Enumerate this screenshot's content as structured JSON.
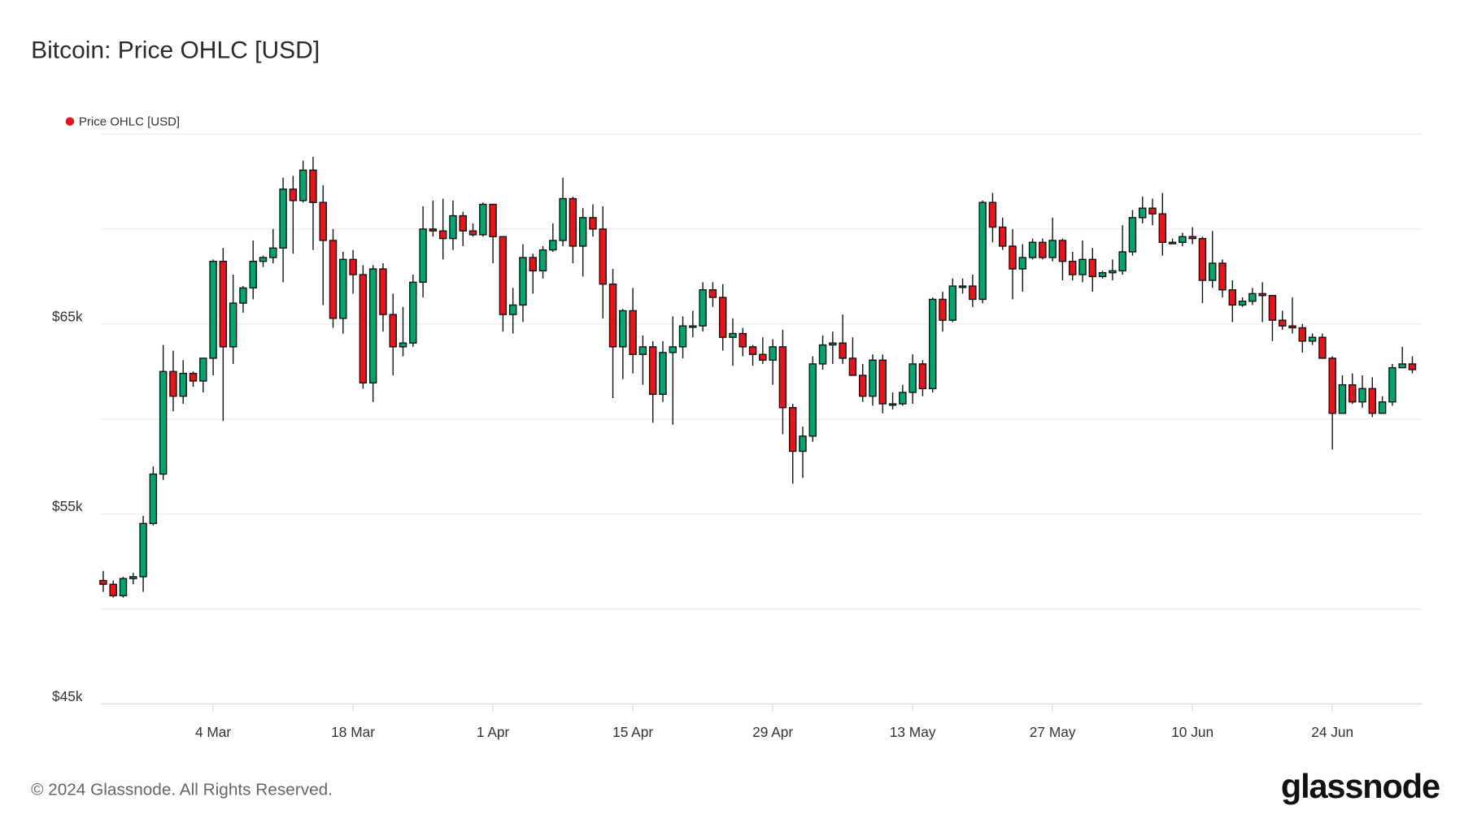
{
  "title": "Bitcoin: Price OHLC [USD]",
  "footer": "© 2024 Glassnode. All Rights Reserved.",
  "logo": "glassnode",
  "chart_data": {
    "type": "candlestick",
    "title": "Bitcoin: Price OHLC [USD]",
    "legend": [
      {
        "name": "Price OHLC [USD]",
        "color": "#e8141a"
      }
    ],
    "legend_placement": "top-left",
    "colors": {
      "up": "#00a66e",
      "down": "#e8141a",
      "outline": "#111111",
      "grid": "#ececec"
    },
    "grid": true,
    "ylim": [
      45000,
      75000
    ],
    "y_gridlines": [
      45000,
      50000,
      55000,
      60000,
      65000,
      70000,
      75000
    ],
    "y_ticks": [
      {
        "label": "$45k",
        "value": 45000
      },
      {
        "label": "$55k",
        "value": 55000
      },
      {
        "label": "$65k",
        "value": 65000
      }
    ],
    "x_ticks": [
      {
        "label": "4 Mar",
        "date": "2024-03-04"
      },
      {
        "label": "18 Mar",
        "date": "2024-03-18"
      },
      {
        "label": "1 Apr",
        "date": "2024-04-01"
      },
      {
        "label": "15 Apr",
        "date": "2024-04-15"
      },
      {
        "label": "29 Apr",
        "date": "2024-04-29"
      },
      {
        "label": "13 May",
        "date": "2024-05-13"
      },
      {
        "label": "27 May",
        "date": "2024-05-27"
      },
      {
        "label": "10 Jun",
        "date": "2024-06-10"
      },
      {
        "label": "24 Jun",
        "date": "2024-06-24"
      }
    ],
    "columns": [
      "date",
      "open",
      "high",
      "low",
      "close"
    ],
    "candles": [
      [
        "2024-02-22",
        51500,
        52000,
        50900,
        51300
      ],
      [
        "2024-02-23",
        51300,
        51500,
        50600,
        50700
      ],
      [
        "2024-02-24",
        50700,
        51700,
        50600,
        51600
      ],
      [
        "2024-02-25",
        51600,
        51900,
        51300,
        51700
      ],
      [
        "2024-02-26",
        51700,
        54900,
        50900,
        54500
      ],
      [
        "2024-02-27",
        54500,
        57500,
        54400,
        57100
      ],
      [
        "2024-02-28",
        57100,
        63900,
        56800,
        62500
      ],
      [
        "2024-02-29",
        62500,
        63600,
        60400,
        61200
      ],
      [
        "2024-03-01",
        61200,
        63100,
        60800,
        62400
      ],
      [
        "2024-03-02",
        62400,
        62500,
        61700,
        62000
      ],
      [
        "2024-03-03",
        62000,
        63200,
        61400,
        63200
      ],
      [
        "2024-03-04",
        63200,
        68400,
        62300,
        68300
      ],
      [
        "2024-03-05",
        68300,
        69000,
        59900,
        63800
      ],
      [
        "2024-03-06",
        63800,
        67600,
        62900,
        66100
      ],
      [
        "2024-03-07",
        66100,
        67000,
        65600,
        66900
      ],
      [
        "2024-03-08",
        66900,
        69400,
        66300,
        68300
      ],
      [
        "2024-03-09",
        68300,
        68600,
        68000,
        68500
      ],
      [
        "2024-03-10",
        68500,
        70000,
        68200,
        69000
      ],
      [
        "2024-03-11",
        69000,
        72700,
        67200,
        72100
      ],
      [
        "2024-03-12",
        72100,
        72800,
        68700,
        71500
      ],
      [
        "2024-03-13",
        71500,
        73600,
        71400,
        73100
      ],
      [
        "2024-03-14",
        73100,
        73800,
        68900,
        71400
      ],
      [
        "2024-03-15",
        71400,
        72300,
        66000,
        69400
      ],
      [
        "2024-03-16",
        69400,
        70000,
        64800,
        65300
      ],
      [
        "2024-03-17",
        65300,
        68800,
        64500,
        68400
      ],
      [
        "2024-03-18",
        68400,
        68900,
        66600,
        67600
      ],
      [
        "2024-03-19",
        67600,
        68100,
        61600,
        61900
      ],
      [
        "2024-03-20",
        61900,
        68100,
        60900,
        67900
      ],
      [
        "2024-03-21",
        67900,
        68200,
        64600,
        65500
      ],
      [
        "2024-03-22",
        65500,
        66600,
        62300,
        63800
      ],
      [
        "2024-03-23",
        63800,
        65900,
        63300,
        64000
      ],
      [
        "2024-03-24",
        64000,
        67600,
        63800,
        67200
      ],
      [
        "2024-03-25",
        67200,
        71200,
        66400,
        70000
      ],
      [
        "2024-03-26",
        70000,
        71500,
        69600,
        69900
      ],
      [
        "2024-03-27",
        69900,
        71600,
        68400,
        69500
      ],
      [
        "2024-03-28",
        69500,
        71500,
        68900,
        70700
      ],
      [
        "2024-03-29",
        70700,
        70900,
        69100,
        69900
      ],
      [
        "2024-03-30",
        69900,
        70300,
        69600,
        69700
      ],
      [
        "2024-03-31",
        69700,
        71400,
        69600,
        71300
      ],
      [
        "2024-04-01",
        71300,
        71300,
        68200,
        69600
      ],
      [
        "2024-04-02",
        69600,
        69600,
        64600,
        65500
      ],
      [
        "2024-04-03",
        65500,
        66900,
        64500,
        66000
      ],
      [
        "2024-04-04",
        66000,
        69200,
        65100,
        68500
      ],
      [
        "2024-04-05",
        68500,
        68700,
        66600,
        67800
      ],
      [
        "2024-04-06",
        67800,
        69100,
        67400,
        68900
      ],
      [
        "2024-04-07",
        68900,
        70300,
        68800,
        69400
      ],
      [
        "2024-04-08",
        69400,
        72700,
        69100,
        71600
      ],
      [
        "2024-04-09",
        71600,
        71700,
        68200,
        69100
      ],
      [
        "2024-04-10",
        69100,
        71100,
        67500,
        70600
      ],
      [
        "2024-04-11",
        70600,
        71300,
        69600,
        70000
      ],
      [
        "2024-04-12",
        70000,
        71200,
        65300,
        67100
      ],
      [
        "2024-04-13",
        67100,
        67900,
        61100,
        63800
      ],
      [
        "2024-04-14",
        63800,
        65800,
        62100,
        65700
      ],
      [
        "2024-04-15",
        65700,
        66900,
        62400,
        63400
      ],
      [
        "2024-04-16",
        63400,
        64400,
        61800,
        63800
      ],
      [
        "2024-04-17",
        63800,
        64100,
        59800,
        61300
      ],
      [
        "2024-04-18",
        61300,
        64100,
        60900,
        63500
      ],
      [
        "2024-04-19",
        63500,
        65400,
        59700,
        63800
      ],
      [
        "2024-04-20",
        63800,
        65400,
        63200,
        64900
      ],
      [
        "2024-04-21",
        64900,
        65700,
        64300,
        64900
      ],
      [
        "2024-04-22",
        64900,
        67200,
        64600,
        66800
      ],
      [
        "2024-04-23",
        66800,
        67200,
        65900,
        66400
      ],
      [
        "2024-04-24",
        66400,
        67100,
        63600,
        64300
      ],
      [
        "2024-04-25",
        64300,
        65300,
        62800,
        64500
      ],
      [
        "2024-04-26",
        64500,
        64800,
        63300,
        63800
      ],
      [
        "2024-04-27",
        63800,
        63900,
        62800,
        63400
      ],
      [
        "2024-04-28",
        63400,
        64300,
        62900,
        63100
      ],
      [
        "2024-04-29",
        63100,
        64200,
        61800,
        63800
      ],
      [
        "2024-04-30",
        63800,
        64700,
        59200,
        60600
      ],
      [
        "2024-05-01",
        60600,
        60800,
        56600,
        58300
      ],
      [
        "2024-05-02",
        58300,
        59600,
        56900,
        59100
      ],
      [
        "2024-05-03",
        59100,
        63300,
        58800,
        62900
      ],
      [
        "2024-05-04",
        62900,
        64400,
        62600,
        63900
      ],
      [
        "2024-05-05",
        63900,
        64600,
        62900,
        64000
      ],
      [
        "2024-05-06",
        64000,
        65500,
        62900,
        63200
      ],
      [
        "2024-05-07",
        63200,
        64300,
        62300,
        62300
      ],
      [
        "2024-05-08",
        62300,
        62900,
        60900,
        61200
      ],
      [
        "2024-05-09",
        61200,
        63400,
        60700,
        63100
      ],
      [
        "2024-05-10",
        63100,
        63400,
        60300,
        60800
      ],
      [
        "2024-05-11",
        60800,
        61400,
        60500,
        60800
      ],
      [
        "2024-05-12",
        60800,
        61800,
        60700,
        61400
      ],
      [
        "2024-05-13",
        61400,
        63400,
        60800,
        62900
      ],
      [
        "2024-05-14",
        62900,
        63100,
        61200,
        61600
      ],
      [
        "2024-05-15",
        61600,
        66400,
        61400,
        66300
      ],
      [
        "2024-05-16",
        66300,
        66700,
        64600,
        65200
      ],
      [
        "2024-05-17",
        65200,
        67400,
        65100,
        67000
      ],
      [
        "2024-05-18",
        67000,
        67400,
        66600,
        67000
      ],
      [
        "2024-05-19",
        67000,
        67600,
        65900,
        66300
      ],
      [
        "2024-05-20",
        66300,
        71500,
        66100,
        71400
      ],
      [
        "2024-05-21",
        71400,
        71900,
        69300,
        70100
      ],
      [
        "2024-05-22",
        70100,
        70600,
        68900,
        69100
      ],
      [
        "2024-05-23",
        69100,
        70000,
        66300,
        67900
      ],
      [
        "2024-05-24",
        67900,
        69200,
        66700,
        68500
      ],
      [
        "2024-05-25",
        68500,
        69500,
        68400,
        69300
      ],
      [
        "2024-05-26",
        69300,
        69500,
        68400,
        68500
      ],
      [
        "2024-05-27",
        68500,
        70600,
        68300,
        69400
      ],
      [
        "2024-05-28",
        69400,
        69500,
        67300,
        68300
      ],
      [
        "2024-05-29",
        68300,
        68800,
        67300,
        67600
      ],
      [
        "2024-05-30",
        67600,
        69400,
        67200,
        68400
      ],
      [
        "2024-05-31",
        68400,
        69000,
        66700,
        67500
      ],
      [
        "2024-06-01",
        67500,
        67800,
        67400,
        67700
      ],
      [
        "2024-06-02",
        67700,
        68400,
        67300,
        67800
      ],
      [
        "2024-06-03",
        67800,
        70200,
        67600,
        68800
      ],
      [
        "2024-06-04",
        68800,
        71000,
        68600,
        70600
      ],
      [
        "2024-06-05",
        70600,
        71700,
        70300,
        71100
      ],
      [
        "2024-06-06",
        71100,
        71600,
        70200,
        70800
      ],
      [
        "2024-06-07",
        70800,
        71900,
        68600,
        69300
      ],
      [
        "2024-06-08",
        69300,
        69500,
        69200,
        69300
      ],
      [
        "2024-06-09",
        69300,
        69800,
        69100,
        69600
      ],
      [
        "2024-06-10",
        69600,
        70100,
        69200,
        69500
      ],
      [
        "2024-06-11",
        69500,
        69600,
        66100,
        67300
      ],
      [
        "2024-06-12",
        67300,
        69900,
        66900,
        68200
      ],
      [
        "2024-06-13",
        68200,
        68400,
        66400,
        66800
      ],
      [
        "2024-06-14",
        66800,
        67300,
        65100,
        66000
      ],
      [
        "2024-06-15",
        66000,
        66400,
        65900,
        66200
      ],
      [
        "2024-06-16",
        66200,
        66900,
        66000,
        66600
      ],
      [
        "2024-06-17",
        66600,
        67200,
        65100,
        66500
      ],
      [
        "2024-06-18",
        66500,
        66500,
        64100,
        65200
      ],
      [
        "2024-06-19",
        65200,
        65700,
        64700,
        64900
      ],
      [
        "2024-06-20",
        64900,
        66400,
        64500,
        64800
      ],
      [
        "2024-06-21",
        64800,
        65000,
        63500,
        64100
      ],
      [
        "2024-06-22",
        64100,
        64500,
        63900,
        64300
      ],
      [
        "2024-06-23",
        64300,
        64500,
        63200,
        63200
      ],
      [
        "2024-06-24",
        63200,
        63300,
        58400,
        60300
      ],
      [
        "2024-06-25",
        60300,
        62300,
        60300,
        61800
      ],
      [
        "2024-06-26",
        61800,
        62400,
        60800,
        60900
      ],
      [
        "2024-06-27",
        60900,
        62300,
        60600,
        61600
      ],
      [
        "2024-06-28",
        61600,
        62200,
        60100,
        60300
      ],
      [
        "2024-06-29",
        60300,
        61200,
        60300,
        60900
      ],
      [
        "2024-06-30",
        60900,
        62900,
        60700,
        62700
      ],
      [
        "2024-07-01",
        62700,
        63800,
        62700,
        62900
      ],
      [
        "2024-07-02",
        62900,
        63300,
        62400,
        62600
      ]
    ]
  }
}
